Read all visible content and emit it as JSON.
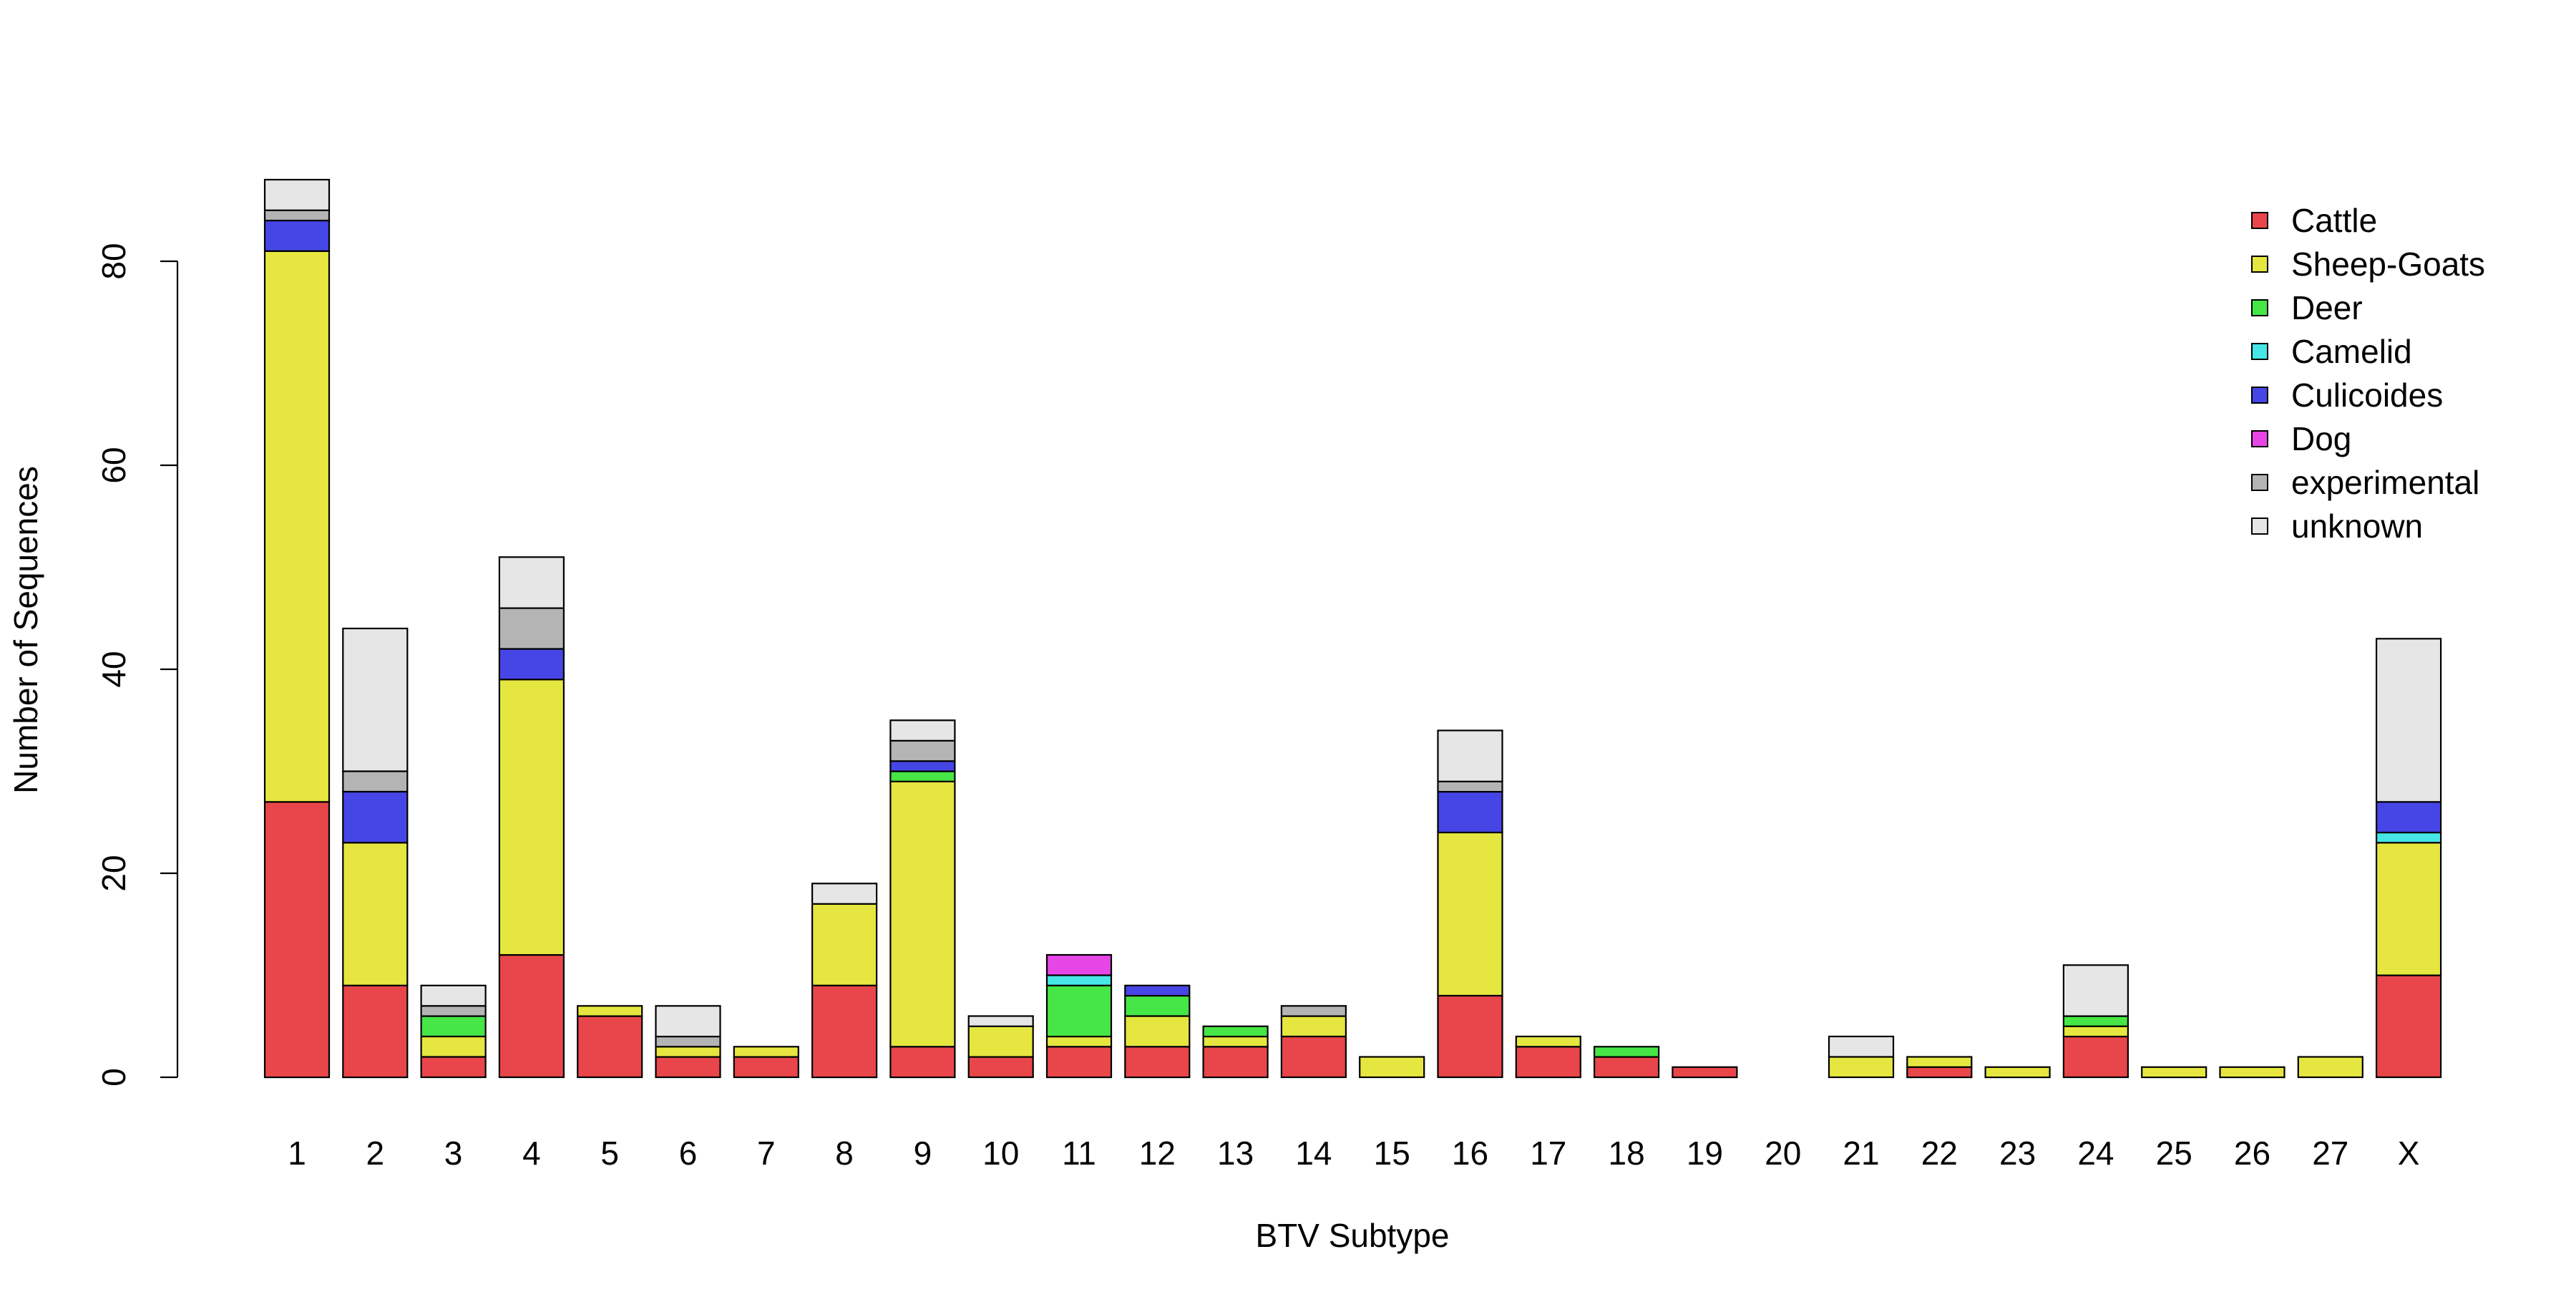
{
  "chart_data": {
    "type": "bar",
    "stacked": true,
    "title": "",
    "xlabel": "BTV Subtype",
    "ylabel": "Number of Sequences",
    "ylim": [
      0,
      88
    ],
    "yticks": [
      0,
      20,
      40,
      60,
      80
    ],
    "grid": false,
    "legend_position": "top-right",
    "categories": [
      "1",
      "2",
      "3",
      "4",
      "5",
      "6",
      "7",
      "8",
      "9",
      "10",
      "11",
      "12",
      "13",
      "14",
      "15",
      "16",
      "17",
      "18",
      "19",
      "20",
      "21",
      "22",
      "23",
      "24",
      "25",
      "26",
      "27",
      "X"
    ],
    "series": [
      {
        "name": "Cattle",
        "color": "#E8464A",
        "values": [
          27,
          9,
          2,
          12,
          6,
          2,
          2,
          9,
          3,
          2,
          3,
          3,
          3,
          4,
          0,
          8,
          3,
          2,
          1,
          0,
          0,
          1,
          0,
          4,
          0,
          0,
          0,
          10
        ]
      },
      {
        "name": "Sheep-Goats",
        "color": "#E6E640",
        "values": [
          54,
          14,
          2,
          27,
          1,
          1,
          1,
          8,
          26,
          3,
          1,
          3,
          1,
          2,
          2,
          16,
          1,
          0,
          0,
          0,
          2,
          1,
          1,
          1,
          1,
          1,
          2,
          13
        ]
      },
      {
        "name": "Deer",
        "color": "#46E646",
        "values": [
          0,
          0,
          2,
          0,
          0,
          0,
          0,
          0,
          1,
          0,
          5,
          2,
          1,
          0,
          0,
          0,
          0,
          1,
          0,
          0,
          0,
          0,
          0,
          1,
          0,
          0,
          0,
          0
        ]
      },
      {
        "name": "Camelid",
        "color": "#46E6E6",
        "values": [
          0,
          0,
          0,
          0,
          0,
          0,
          0,
          0,
          0,
          0,
          1,
          0,
          0,
          0,
          0,
          0,
          0,
          0,
          0,
          0,
          0,
          0,
          0,
          0,
          0,
          0,
          0,
          1
        ]
      },
      {
        "name": "Culicoides",
        "color": "#4646E6",
        "values": [
          3,
          5,
          0,
          3,
          0,
          0,
          0,
          0,
          1,
          0,
          0,
          1,
          0,
          0,
          0,
          4,
          0,
          0,
          0,
          0,
          0,
          0,
          0,
          0,
          0,
          0,
          0,
          3
        ]
      },
      {
        "name": "Dog",
        "color": "#E646E6",
        "values": [
          0,
          0,
          0,
          0,
          0,
          0,
          0,
          0,
          0,
          0,
          2,
          0,
          0,
          0,
          0,
          0,
          0,
          0,
          0,
          0,
          0,
          0,
          0,
          0,
          0,
          0,
          0,
          0
        ]
      },
      {
        "name": "experimental",
        "color": "#B4B4B4",
        "values": [
          1,
          2,
          1,
          4,
          0,
          1,
          0,
          0,
          2,
          0,
          0,
          0,
          0,
          1,
          0,
          1,
          0,
          0,
          0,
          0,
          0,
          0,
          0,
          0,
          0,
          0,
          0,
          0
        ]
      },
      {
        "name": "unknown",
        "color": "#E6E6E6",
        "values": [
          3,
          14,
          2,
          5,
          0,
          3,
          0,
          2,
          2,
          1,
          0,
          0,
          0,
          0,
          0,
          5,
          0,
          0,
          0,
          0,
          2,
          0,
          0,
          5,
          0,
          0,
          0,
          16
        ]
      }
    ]
  }
}
